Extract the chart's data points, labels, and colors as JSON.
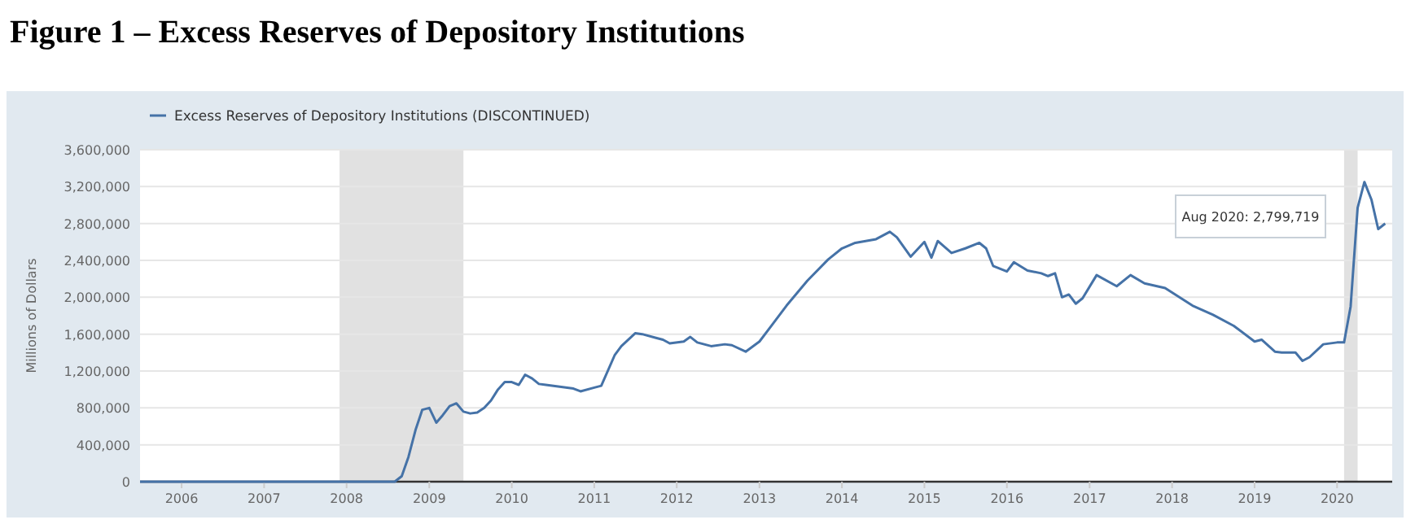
{
  "chart_data": {
    "type": "line",
    "title": "Figure 1 – Excess Reserves of Depository Institutions",
    "ylabel": "Millions of Dollars",
    "x": [
      "2005-07",
      "2008-08",
      "2008-09",
      "2008-10",
      "2008-11",
      "2008-12",
      "2009-01",
      "2009-02",
      "2009-03",
      "2009-04",
      "2009-05",
      "2009-06",
      "2009-07",
      "2009-08",
      "2009-09",
      "2009-10",
      "2009-11",
      "2009-12",
      "2010-01",
      "2010-02",
      "2010-03",
      "2010-04",
      "2010-05",
      "2010-06",
      "2010-08",
      "2010-10",
      "2010-11",
      "2011-01",
      "2011-02",
      "2011-04",
      "2011-05",
      "2011-07",
      "2011-08",
      "2011-10",
      "2011-11",
      "2011-12",
      "2012-02",
      "2012-03",
      "2012-04",
      "2012-06",
      "2012-08",
      "2012-09",
      "2012-11",
      "2013-01",
      "2013-03",
      "2013-05",
      "2013-08",
      "2013-11",
      "2014-01",
      "2014-03",
      "2014-06",
      "2014-08",
      "2014-09",
      "2014-11",
      "2015-01",
      "2015-02",
      "2015-03",
      "2015-05",
      "2015-07",
      "2015-09",
      "2015-10",
      "2015-11",
      "2016-01",
      "2016-02",
      "2016-04",
      "2016-06",
      "2016-07",
      "2016-08",
      "2016-09",
      "2016-10",
      "2016-11",
      "2016-12",
      "2017-02",
      "2017-05",
      "2017-07",
      "2017-09",
      "2017-12",
      "2018-04",
      "2018-07",
      "2018-10",
      "2019-01",
      "2019-02",
      "2019-04",
      "2019-05",
      "2019-07",
      "2019-08",
      "2019-09",
      "2019-11",
      "2020-01",
      "2020-02",
      "2020-03",
      "2020-04",
      "2020-05",
      "2020-06",
      "2020-07",
      "2020-08"
    ],
    "series": [
      {
        "name": "Excess Reserves of Depository Institutions (DISCONTINUED)",
        "color": "#4572a7",
        "values": [
          0,
          0,
          60000,
          270000,
          560000,
          780000,
          800000,
          640000,
          720000,
          820000,
          850000,
          760000,
          740000,
          750000,
          800000,
          880000,
          1000000,
          1080000,
          1080000,
          1050000,
          1160000,
          1120000,
          1060000,
          1050000,
          1030000,
          1010000,
          980000,
          1020000,
          1040000,
          1370000,
          1470000,
          1610000,
          1600000,
          1560000,
          1540000,
          1500000,
          1520000,
          1570000,
          1510000,
          1470000,
          1490000,
          1480000,
          1410000,
          1520000,
          1710000,
          1910000,
          2180000,
          2410000,
          2530000,
          2590000,
          2630000,
          2710000,
          2650000,
          2440000,
          2600000,
          2430000,
          2610000,
          2480000,
          2530000,
          2590000,
          2530000,
          2340000,
          2280000,
          2380000,
          2290000,
          2260000,
          2230000,
          2260000,
          2000000,
          2030000,
          1930000,
          1990000,
          2240000,
          2120000,
          2240000,
          2150000,
          2100000,
          1910000,
          1810000,
          1690000,
          1520000,
          1540000,
          1410000,
          1400000,
          1400000,
          1310000,
          1350000,
          1490000,
          1510000,
          1510000,
          1900000,
          2970000,
          3250000,
          3060000,
          2740000,
          2799719
        ]
      }
    ],
    "xlim": [
      "2005-07",
      "2020-09"
    ],
    "xticks": [
      {
        "value": "2006",
        "label": "2006"
      },
      {
        "value": "2007",
        "label": "2007"
      },
      {
        "value": "2008",
        "label": "2008"
      },
      {
        "value": "2009",
        "label": "2009"
      },
      {
        "value": "2010",
        "label": "2010"
      },
      {
        "value": "2011",
        "label": "2011"
      },
      {
        "value": "2012",
        "label": "2012"
      },
      {
        "value": "2013",
        "label": "2013"
      },
      {
        "value": "2014",
        "label": "2014"
      },
      {
        "value": "2015",
        "label": "2015"
      },
      {
        "value": "2016",
        "label": "2016"
      },
      {
        "value": "2017",
        "label": "2017"
      },
      {
        "value": "2018",
        "label": "2018"
      },
      {
        "value": "2019",
        "label": "2019"
      },
      {
        "value": "2020",
        "label": "2020"
      }
    ],
    "ylim": [
      0,
      3600000
    ],
    "yticks": [
      {
        "value": 0,
        "label": "0"
      },
      {
        "value": 400000,
        "label": "400,000"
      },
      {
        "value": 800000,
        "label": "800,000"
      },
      {
        "value": 1200000,
        "label": "1,200,000"
      },
      {
        "value": 1600000,
        "label": "1,600,000"
      },
      {
        "value": 2000000,
        "label": "2,000,000"
      },
      {
        "value": 2400000,
        "label": "2,400,000"
      },
      {
        "value": 2800000,
        "label": "2,800,000"
      },
      {
        "value": 3200000,
        "label": "3,200,000"
      },
      {
        "value": 3600000,
        "label": "3,600,000"
      }
    ],
    "bands": [
      {
        "axis": "x",
        "from": "2007-12",
        "to": "2009-06",
        "color": "#e1e1e1"
      },
      {
        "axis": "x",
        "from": "2020-02",
        "to": "2020-04",
        "color": "#e1e1e1"
      }
    ],
    "annotations": [
      "Aug 2020: 2,799,719"
    ],
    "grid": "y",
    "legend": "top left",
    "marker": "none",
    "line_style": "solid"
  }
}
